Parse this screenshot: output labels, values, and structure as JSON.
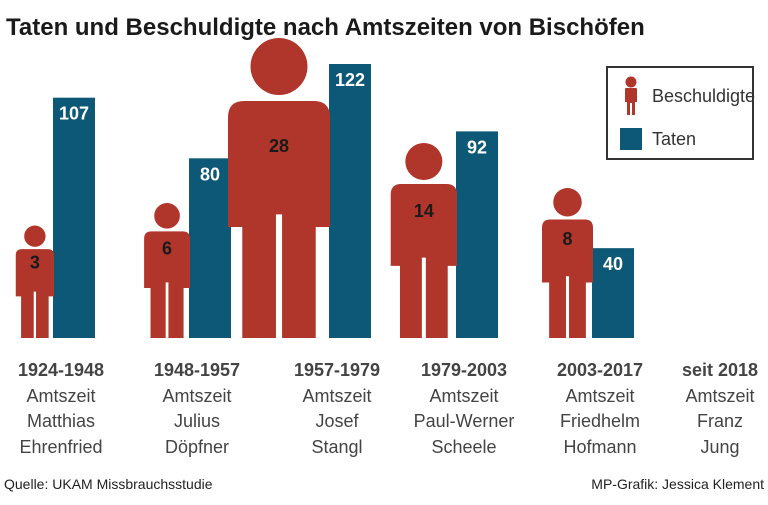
{
  "title": "Taten und Beschuldigte nach Amtszeiten von Bischöfen",
  "colors": {
    "beschuldigte": "#b0362b",
    "taten": "#0d5876"
  },
  "legend": {
    "beschuldigte": "Beschuldigte",
    "taten": "Taten",
    "beschuldigte_icon": "person-icon",
    "taten_icon": "square-icon"
  },
  "footer": {
    "source": "Quelle: UKAM Missbrauchsstudie",
    "credit": "MP-Grafik: Jessica Klement"
  },
  "chart_data": {
    "type": "bar",
    "title": "Taten und Beschuldigte nach Amtszeiten von Bischöfen",
    "categories": [
      "1924-1948",
      "1948-1957",
      "1957-1979",
      "1979-2003",
      "2003-2017",
      "seit 2018"
    ],
    "category_details": [
      {
        "period": "1924-1948",
        "line1": "Amtszeit",
        "line2": "Matthias",
        "line3": "Ehrenfried"
      },
      {
        "period": "1948-1957",
        "line1": "Amtszeit",
        "line2": "Julius",
        "line3": "Döpfner"
      },
      {
        "period": "1957-1979",
        "line1": "Amtszeit",
        "line2": "Josef",
        "line3": "Stangl"
      },
      {
        "period": "1979-2003",
        "line1": "Amtszeit",
        "line2": "Paul-Werner",
        "line3": "Scheele"
      },
      {
        "period": "2003-2017",
        "line1": "Amtszeit",
        "line2": "Friedhelm",
        "line3": "Hofmann"
      },
      {
        "period": "seit 2018",
        "line1": "Amtszeit",
        "line2": "Franz",
        "line3": "Jung"
      }
    ],
    "series": [
      {
        "name": "Beschuldigte",
        "values": [
          3,
          6,
          28,
          14,
          8,
          null
        ]
      },
      {
        "name": "Taten",
        "values": [
          107,
          80,
          122,
          92,
          40,
          null
        ]
      }
    ],
    "xlabel": "",
    "ylabel": "",
    "ylim": [
      0,
      122
    ],
    "grid": false,
    "legend_position": "top-right"
  }
}
